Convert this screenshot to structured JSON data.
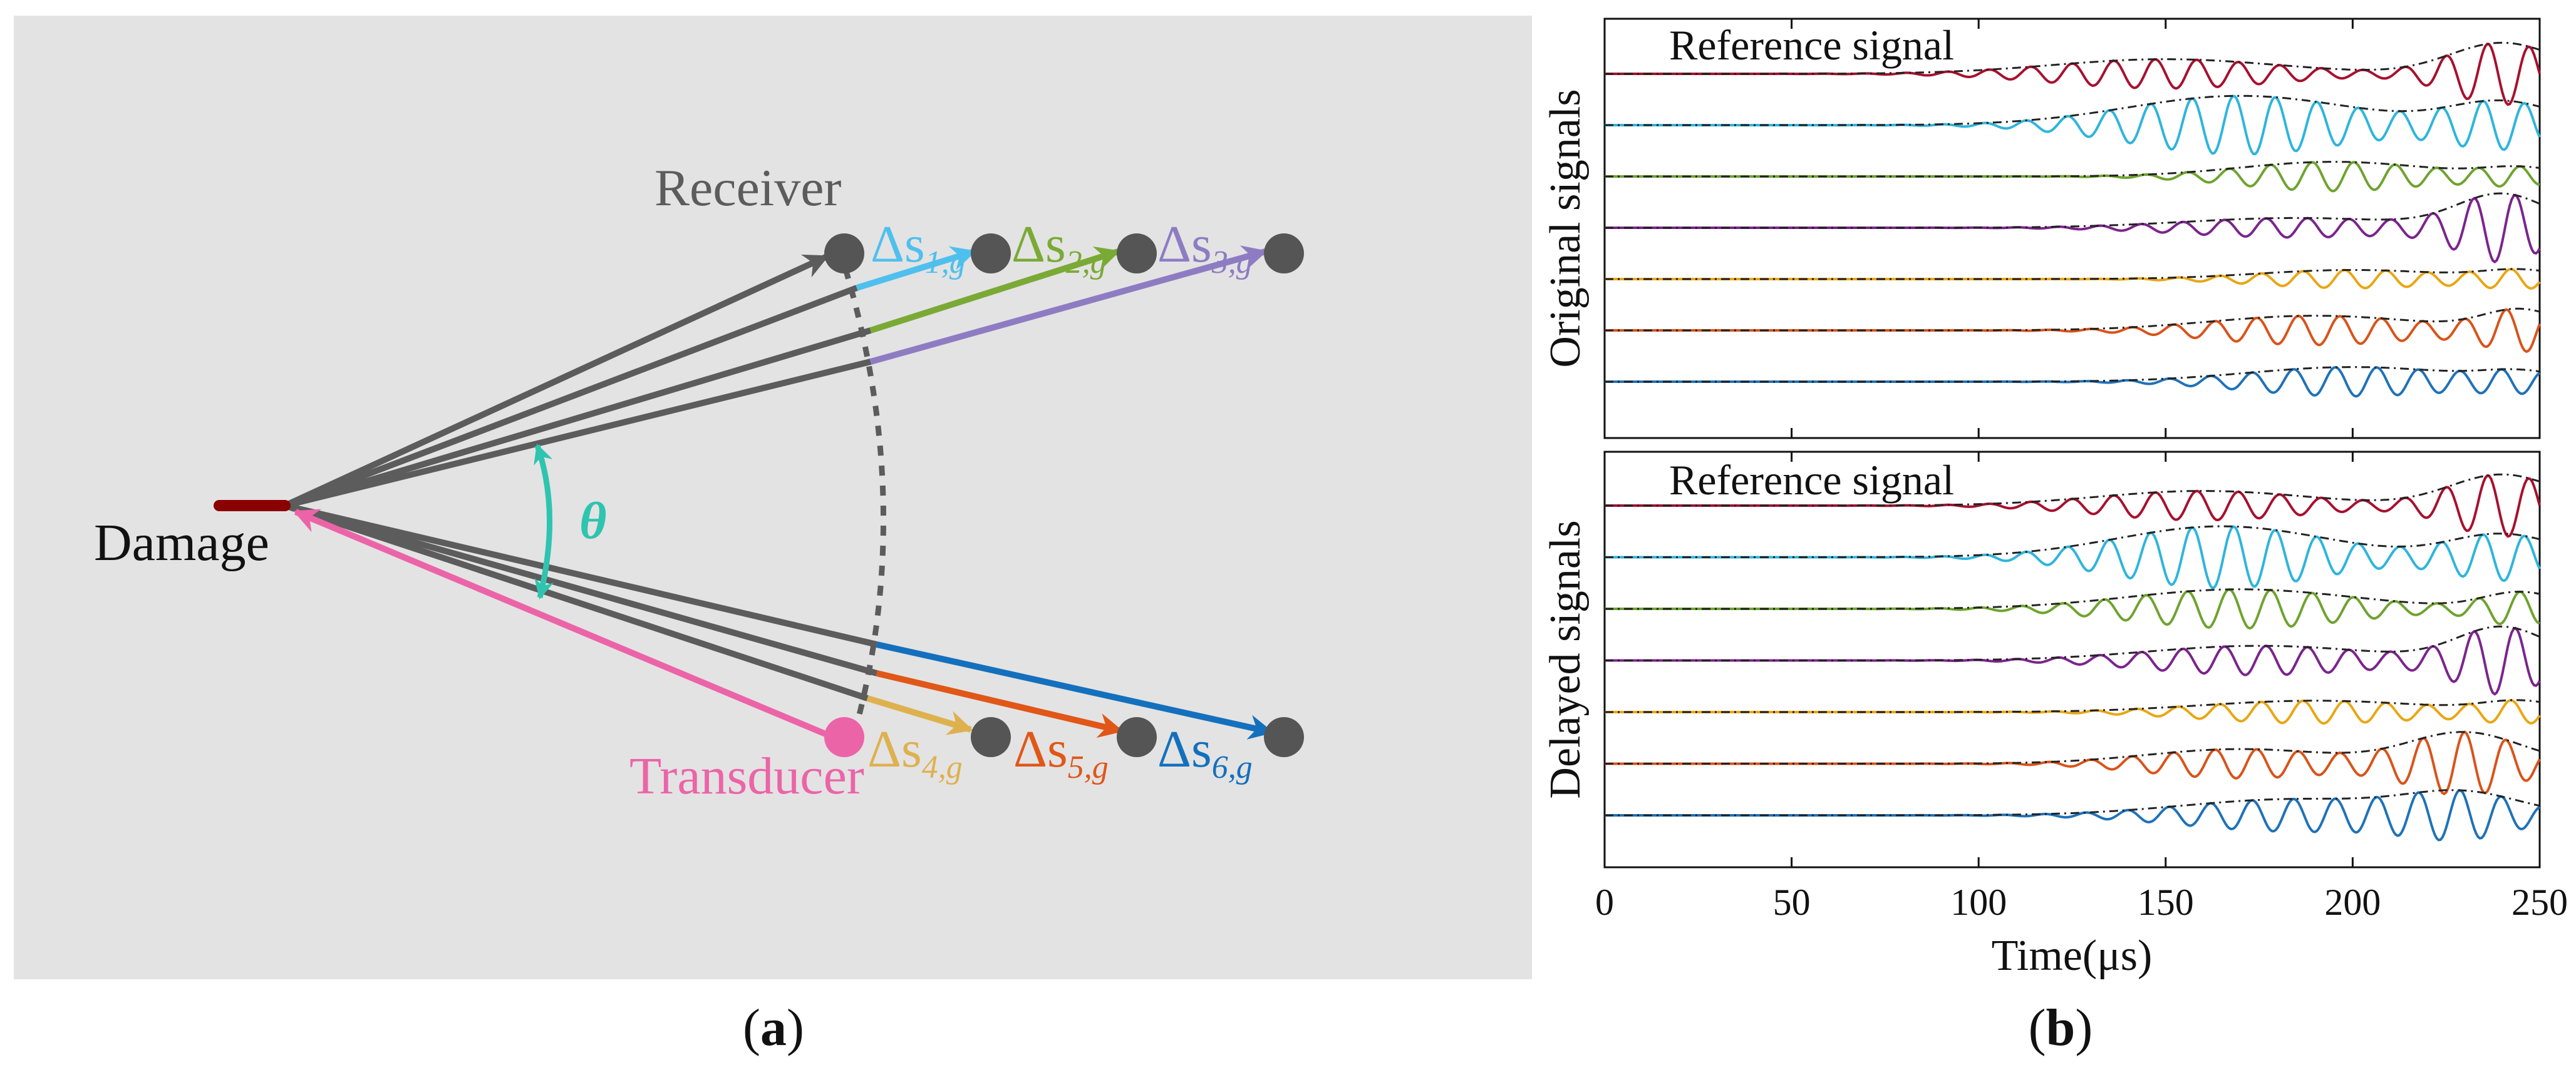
{
  "panel_a": {
    "caption": "a",
    "receiver_label": "Receiver",
    "transducer_label": "Transducer",
    "damage_label": "Damage",
    "angle_label": "θ",
    "delta_labels": [
      {
        "sym": "Δs",
        "sub": "1,g",
        "color": "#4fc0ee"
      },
      {
        "sym": "Δs",
        "sub": "2,g",
        "color": "#7aaa35"
      },
      {
        "sym": "Δs",
        "sub": "3,g",
        "color": "#8e7cc3"
      },
      {
        "sym": "Δs",
        "sub": "4,g",
        "color": "#deb14f"
      },
      {
        "sym": "Δs",
        "sub": "5,g",
        "color": "#e05718"
      },
      {
        "sym": "Δs",
        "sub": "6,g",
        "color": "#1470bd"
      }
    ],
    "colors": {
      "background": "#e3e3e3",
      "path": "#5c5c5c",
      "node": "#555555",
      "transducer": "#ec64a8",
      "damage": "#8b0000",
      "angle": "#2ec4b0"
    }
  },
  "panel_b": {
    "caption": "b",
    "top_panel": {
      "ylabel": "Original signals",
      "reference_label": "Reference signal",
      "traces": [
        {
          "color": "#a8102e",
          "envelope": [
            [
              150,
              0.45,
              30
            ],
            [
              240,
              0.95,
              14
            ]
          ]
        },
        {
          "color": "#2eb5dc",
          "envelope": [
            [
              170,
              0.9,
              30
            ],
            [
              240,
              0.7,
              14
            ]
          ]
        },
        {
          "color": "#6fa32f",
          "envelope": [
            [
              195,
              0.45,
              25
            ],
            [
              245,
              0.25,
              10
            ]
          ]
        },
        {
          "color": "#7b248c",
          "envelope": [
            [
              185,
              0.3,
              30
            ],
            [
              240,
              1.0,
              12
            ]
          ]
        },
        {
          "color": "#e9a614",
          "envelope": [
            [
              200,
              0.28,
              25
            ],
            [
              245,
              0.25,
              10
            ]
          ]
        },
        {
          "color": "#d95319",
          "envelope": [
            [
              190,
              0.45,
              28
            ],
            [
              245,
              0.6,
              10
            ]
          ]
        },
        {
          "color": "#1f72b8",
          "envelope": [
            [
              200,
              0.45,
              28
            ],
            [
              245,
              0.25,
              10
            ]
          ]
        }
      ]
    },
    "bottom_panel": {
      "ylabel": "Delayed signals",
      "reference_label": "Reference signal",
      "traces": [
        {
          "color": "#a8102e",
          "envelope": [
            [
              160,
              0.45,
              28
            ],
            [
              240,
              0.95,
              14
            ]
          ]
        },
        {
          "color": "#2eb5dc",
          "envelope": [
            [
              165,
              0.95,
              28
            ],
            [
              240,
              0.7,
              14
            ]
          ]
        },
        {
          "color": "#6fa32f",
          "envelope": [
            [
              170,
              0.6,
              30
            ],
            [
              245,
              0.5,
              10
            ]
          ]
        },
        {
          "color": "#7b248c",
          "envelope": [
            [
              175,
              0.45,
              30
            ],
            [
              240,
              1.0,
              12
            ]
          ]
        },
        {
          "color": "#e9a614",
          "envelope": [
            [
              190,
              0.35,
              30
            ],
            [
              245,
              0.3,
              10
            ]
          ]
        },
        {
          "color": "#d95319",
          "envelope": [
            [
              170,
              0.45,
              25
            ],
            [
              230,
              0.95,
              15
            ]
          ]
        },
        {
          "color": "#1f72b8",
          "envelope": [
            [
              185,
              0.5,
              30
            ],
            [
              230,
              0.6,
              15
            ]
          ]
        }
      ]
    },
    "x_axis": {
      "label": "Time(μs)",
      "ticks": [
        "0",
        "50",
        "100",
        "150",
        "200",
        "250"
      ],
      "range": [
        0,
        250
      ]
    },
    "frequency_cycles_per_us": 0.09
  }
}
